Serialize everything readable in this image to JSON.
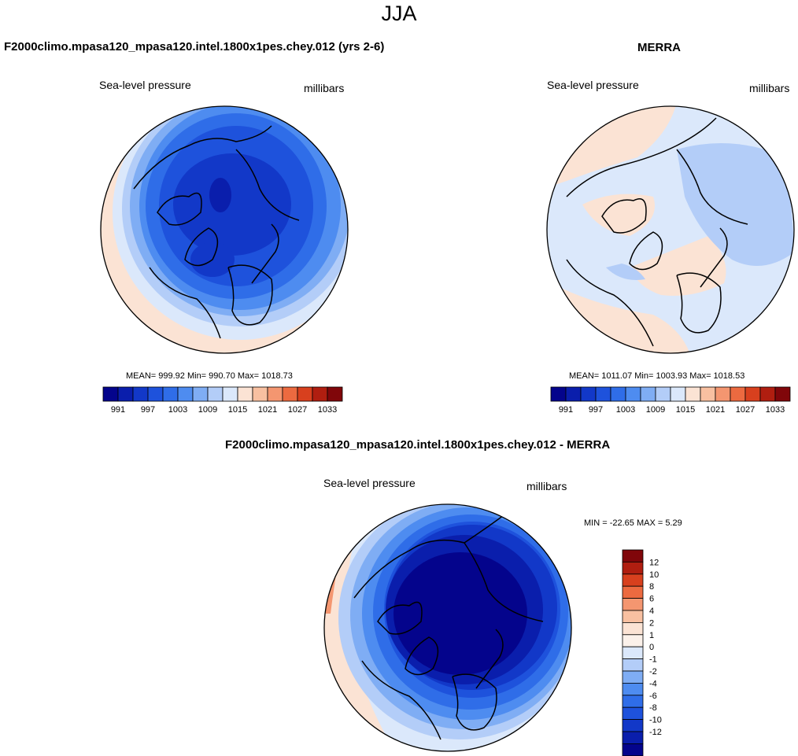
{
  "figure": {
    "title": "JJA"
  },
  "chart_data": [
    {
      "type": "heatmap",
      "projection": "polar-stereographic-north",
      "title": "F2000climo.mpasa120_mpasa120.intel.1800x1pes.chey.012 (yrs 2-6)",
      "variable": "Sea-level pressure",
      "units": "millibars",
      "stats_text": "MEAN= 999.92  Min= 990.70  Max= 1018.73",
      "stats": {
        "mean": 999.92,
        "min": 990.7,
        "max": 1018.73
      },
      "colorbar": {
        "orientation": "horizontal",
        "levels": [
          991,
          994,
          997,
          1000,
          1003,
          1006,
          1009,
          1012,
          1015,
          1018,
          1021,
          1024,
          1027,
          1030,
          1033
        ],
        "tick_labels": [
          "991",
          "997",
          "1003",
          "1009",
          "1015",
          "1021",
          "1027",
          "1033"
        ],
        "colors": [
          "#04048c",
          "#0a1eac",
          "#1238c8",
          "#1e52dc",
          "#2f6de8",
          "#4e8cf0",
          "#7fadf4",
          "#b3cdf8",
          "#dbe8fb",
          "#fbe3d4",
          "#f8c0a1",
          "#f49670",
          "#ec6a40",
          "#d8401e",
          "#b01e10",
          "#80060a"
        ]
      }
    },
    {
      "type": "heatmap",
      "projection": "polar-stereographic-north",
      "title": "MERRA",
      "variable": "Sea-level pressure",
      "units": "millibars",
      "stats_text": "MEAN= 1011.07  Min= 1003.93  Max= 1018.53",
      "stats": {
        "mean": 1011.07,
        "min": 1003.93,
        "max": 1018.53
      },
      "colorbar": {
        "orientation": "horizontal",
        "levels": [
          991,
          994,
          997,
          1000,
          1003,
          1006,
          1009,
          1012,
          1015,
          1018,
          1021,
          1024,
          1027,
          1030,
          1033
        ],
        "tick_labels": [
          "991",
          "997",
          "1003",
          "1009",
          "1015",
          "1021",
          "1027",
          "1033"
        ],
        "colors": [
          "#04048c",
          "#0a1eac",
          "#1238c8",
          "#1e52dc",
          "#2f6de8",
          "#4e8cf0",
          "#7fadf4",
          "#b3cdf8",
          "#dbe8fb",
          "#fbe3d4",
          "#f8c0a1",
          "#f49670",
          "#ec6a40",
          "#d8401e",
          "#b01e10",
          "#80060a"
        ]
      }
    },
    {
      "type": "heatmap",
      "projection": "polar-stereographic-north",
      "title": "F2000climo.mpasa120_mpasa120.intel.1800x1pes.chey.012 - MERRA",
      "variable": "Sea-level pressure",
      "units": "millibars",
      "stats_text": "MIN = -22.65 MAX =   5.29",
      "stats": {
        "min": -22.65,
        "max": 5.29
      },
      "colorbar": {
        "orientation": "vertical",
        "levels": [
          12,
          10,
          8,
          6,
          4,
          2,
          1,
          0,
          -1,
          -2,
          -4,
          -6,
          -8,
          -10,
          -12
        ],
        "tick_labels": [
          "12",
          "10",
          "8",
          "6",
          "4",
          "2",
          "1",
          "0",
          "-1",
          "-2",
          "-4",
          "-6",
          "-8",
          "-10",
          "-12"
        ],
        "colors": [
          "#80060a",
          "#b01e10",
          "#d8401e",
          "#ec6a40",
          "#f49670",
          "#f8c0a1",
          "#fbe3d4",
          "#fbf1ea",
          "#dbe8fb",
          "#b3cdf8",
          "#7fadf4",
          "#4e8cf0",
          "#2f6de8",
          "#1e52dc",
          "#1238c8",
          "#0a1eac",
          "#04048c"
        ]
      }
    }
  ]
}
